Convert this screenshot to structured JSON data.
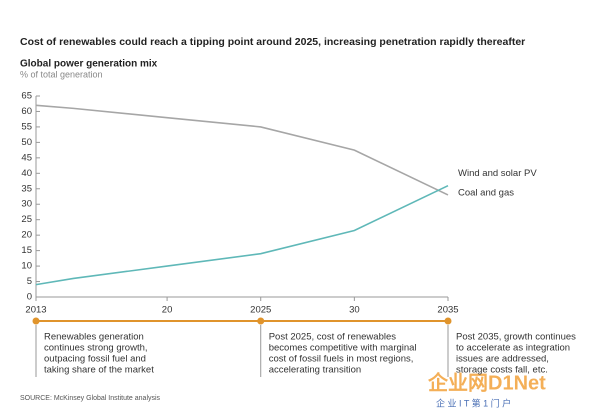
{
  "chart_data": {
    "type": "line",
    "title": "Cost of renewables could reach a tipping point around 2025, increasing penetration rapidly thereafter",
    "subtitle": "Global power generation mix",
    "y_label": "% of total generation",
    "x": [
      2013,
      2015,
      2020,
      2025,
      2030,
      2035
    ],
    "series": [
      {
        "name": "Coal and gas",
        "color": "#a6a6a6",
        "values": [
          62,
          61,
          58,
          55,
          47.5,
          33
        ]
      },
      {
        "name": "Wind and solar PV",
        "color": "#5fb8b8",
        "values": [
          4,
          6,
          10,
          14,
          21.5,
          36
        ]
      }
    ],
    "xlim": [
      2013,
      2035
    ],
    "xticks": [
      2013,
      {
        "value": 2020,
        "label": "20"
      },
      2025,
      {
        "value": 2030,
        "label": "30"
      },
      2035
    ],
    "ylim": [
      0,
      65
    ],
    "yticks": [
      0,
      5,
      10,
      15,
      20,
      25,
      30,
      35,
      40,
      45,
      50,
      55,
      60,
      65
    ],
    "timeline_color": "#e0942c",
    "timeline_points": [
      2013,
      2025,
      2035
    ],
    "annotations": [
      {
        "lines": [
          "Renewables generation",
          "continues strong growth,",
          "outpacing fossil fuel and",
          "taking share of the market"
        ]
      },
      {
        "lines": [
          "Post 2025, cost of renewables",
          "becomes competitive with marginal",
          "cost of fossil fuels in most regions,",
          "accelerating transition"
        ]
      },
      {
        "lines": [
          "Post 2035, growth continues",
          "to accelerate as integration",
          "issues are addressed,",
          "storage costs fall, etc."
        ]
      }
    ],
    "source": "SOURCE:  McKinsey Global Institute analysis",
    "watermark": "企业网D1Net",
    "watermark_sub": "企 业 I T 第 1 门 户"
  }
}
